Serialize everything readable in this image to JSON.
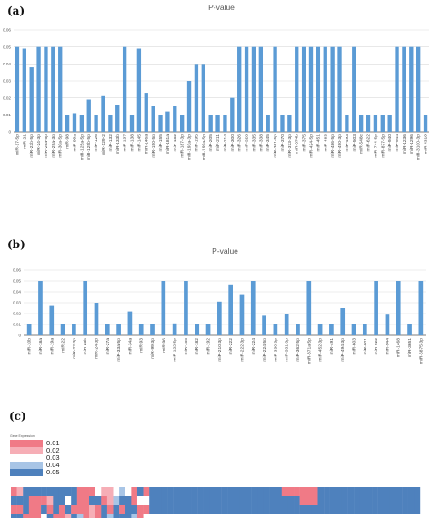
{
  "panels": {
    "a": "(a)",
    "b": "(b)",
    "c": "(c)"
  },
  "colors": {
    "bar": "#5B9BD5",
    "grid": "#d9d9d9",
    "axis": "#595959"
  },
  "chart_data": [
    {
      "type": "bar",
      "title": "P-value",
      "ylim": [
        0,
        0.06
      ],
      "yticks": [
        "0.06",
        "0.05",
        "0.04",
        "0.03",
        "0.02",
        "0.01",
        "0"
      ],
      "grid": true,
      "categories": [
        "miR-17-5p",
        "miR-21",
        "miR-23b-5p",
        "miR-24-3p",
        "miR-26a-5p",
        "miR-29a-3p",
        "miR-30a-5p",
        "miR-98",
        "miR-99a",
        "miR-125a-5p",
        "miR-125b-5p",
        "miR-126",
        "miR-129-2",
        "miR-132",
        "miR-133b",
        "miR-137",
        "miR-138",
        "miR-145",
        "miR-146a",
        "miR-150-5p",
        "miR-155",
        "miR-181a",
        "miR-182",
        "miR-187-3p",
        "miR-193a-3p",
        "miR-195",
        "miR-199a-5p",
        "miR-205",
        "miR-211",
        "miR-214",
        "miR-300",
        "miR-326",
        "miR-328",
        "miR-335",
        "miR-338",
        "miR-345",
        "miR-361-5p",
        "miR-370",
        "miR-373-3p",
        "miR-374b",
        "miR-375",
        "miR-424-5p",
        "miR-451",
        "miR-483",
        "miR-486-5p",
        "miR-490-3p",
        "miR-493",
        "miR-503",
        "miR-548c",
        "miR-622",
        "miR-744-5p",
        "miR-877-5p",
        "miR-940",
        "miR-944",
        "miR-1236",
        "miR-1296",
        "miR-3100-3p",
        "miR-4319"
      ],
      "values": [
        0.05,
        0.049,
        0.038,
        0.05,
        0.05,
        0.05,
        0.05,
        0.01,
        0.011,
        0.01,
        0.019,
        0.01,
        0.021,
        0.01,
        0.016,
        0.05,
        0.01,
        0.049,
        0.023,
        0.015,
        0.01,
        0.012,
        0.015,
        0.01,
        0.03,
        0.04,
        0.04,
        0.01,
        0.01,
        0.01,
        0.02,
        0.05,
        0.05,
        0.05,
        0.05,
        0.01,
        0.05,
        0.01,
        0.01,
        0.05,
        0.05,
        0.05,
        0.05,
        0.05,
        0.05,
        0.05,
        0.01,
        0.05,
        0.01,
        0.01,
        0.01,
        0.01,
        0.01,
        0.05,
        0.05,
        0.05,
        0.05,
        0.01
      ]
    },
    {
      "type": "bar",
      "title": "P-value",
      "ylim": [
        0,
        0.06
      ],
      "yticks": [
        "0.06",
        "0.05",
        "0.04",
        "0.03",
        "0.02",
        "0.01",
        "0"
      ],
      "grid": true,
      "categories": [
        "miR-10b",
        "miR-18a",
        "miR-19a",
        "miR-22",
        "miR-22-3p",
        "miR-23b",
        "miR-24-3p",
        "miR-27a",
        "miR-33a-5p",
        "miR-34a",
        "miR-93",
        "miR-99-3p",
        "miR-96",
        "miR-122-5p",
        "miR-155",
        "miR-182",
        "miR-192",
        "miR-210-3p",
        "miR-222",
        "miR-222-3p",
        "miR-224",
        "miR-224-5p",
        "miR-330-3p",
        "miR-331-3p",
        "miR-362-5p",
        "miR-371a-5p",
        "miR-452-3p",
        "miR-491",
        "miR-494-3p",
        "miR-603",
        "miR-801",
        "miR-922",
        "miR-944",
        "miR-1468",
        "miR-3651",
        "miR-6875-3p"
      ],
      "values": [
        0.01,
        0.05,
        0.027,
        0.01,
        0.01,
        0.05,
        0.03,
        0.01,
        0.01,
        0.022,
        0.01,
        0.01,
        0.05,
        0.011,
        0.05,
        0.01,
        0.01,
        0.031,
        0.046,
        0.037,
        0.05,
        0.018,
        0.01,
        0.02,
        0.01,
        0.05,
        0.01,
        0.01,
        0.025,
        0.01,
        0.01,
        0.05,
        0.019,
        0.05,
        0.01,
        0.05
      ]
    }
  ],
  "legend": {
    "title": "Gene Expression",
    "items": [
      {
        "label": "0.01",
        "color": "#F07A86"
      },
      {
        "label": "0.02",
        "color": "#F6AEB6"
      },
      {
        "label": "0.03",
        "color": "#FFFFFF"
      },
      {
        "label": "0.04",
        "color": "#A8C5E6"
      },
      {
        "label": "0.05",
        "color": "#4E81BD"
      }
    ]
  },
  "heatmap": {
    "rows": [
      "01444444444000211232040444444444444444444444400000044444444444444444",
      "44400014424004401344022444444444444444444444444400044444444444444444",
      "00400404040001040404400444444444444444444444444444444444444444444444",
      "44000240014301043444302"
    ]
  }
}
